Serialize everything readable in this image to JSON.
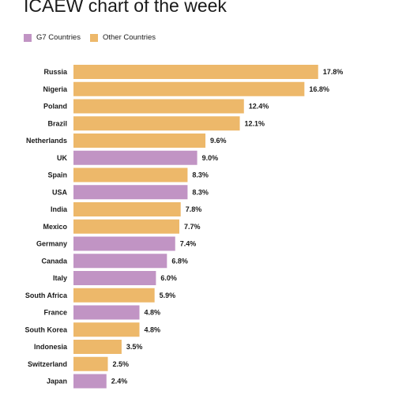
{
  "title": "ICAEW chart of the week",
  "legend": {
    "g7_label": "G7 Countries",
    "other_label": "Other Countries"
  },
  "colors": {
    "g7": "#c194c4",
    "other": "#edb86a"
  },
  "chart_data": {
    "type": "bar",
    "orientation": "horizontal",
    "title": "ICAEW chart of the week",
    "categories": [
      "Russia",
      "Nigeria",
      "Poland",
      "Brazil",
      "Netherlands",
      "UK",
      "Spain",
      "USA",
      "India",
      "Mexico",
      "Germany",
      "Canada",
      "Italy",
      "South Africa",
      "France",
      "South Korea",
      "Indonesia",
      "Switzerland",
      "Japan"
    ],
    "values": [
      17.8,
      16.8,
      12.4,
      12.1,
      9.6,
      9.0,
      8.3,
      8.3,
      7.8,
      7.7,
      7.4,
      6.8,
      6.0,
      5.9,
      4.8,
      4.8,
      3.5,
      2.5,
      2.4
    ],
    "value_labels": [
      "17.8%",
      "16.8%",
      "12.4%",
      "12.1%",
      "9.6%",
      "9.0%",
      "8.3%",
      "8.3%",
      "7.8%",
      "7.7%",
      "7.4%",
      "6.8%",
      "6.0%",
      "5.9%",
      "4.8%",
      "4.8%",
      "3.5%",
      "2.5%",
      "2.4%"
    ],
    "groups": [
      "Other Countries",
      "Other Countries",
      "Other Countries",
      "Other Countries",
      "Other Countries",
      "G7 Countries",
      "Other Countries",
      "G7 Countries",
      "Other Countries",
      "Other Countries",
      "G7 Countries",
      "G7 Countries",
      "G7 Countries",
      "Other Countries",
      "G7 Countries",
      "Other Countries",
      "Other Countries",
      "Other Countries",
      "G7 Countries"
    ],
    "legend_position": "top-left",
    "grid": false
  }
}
